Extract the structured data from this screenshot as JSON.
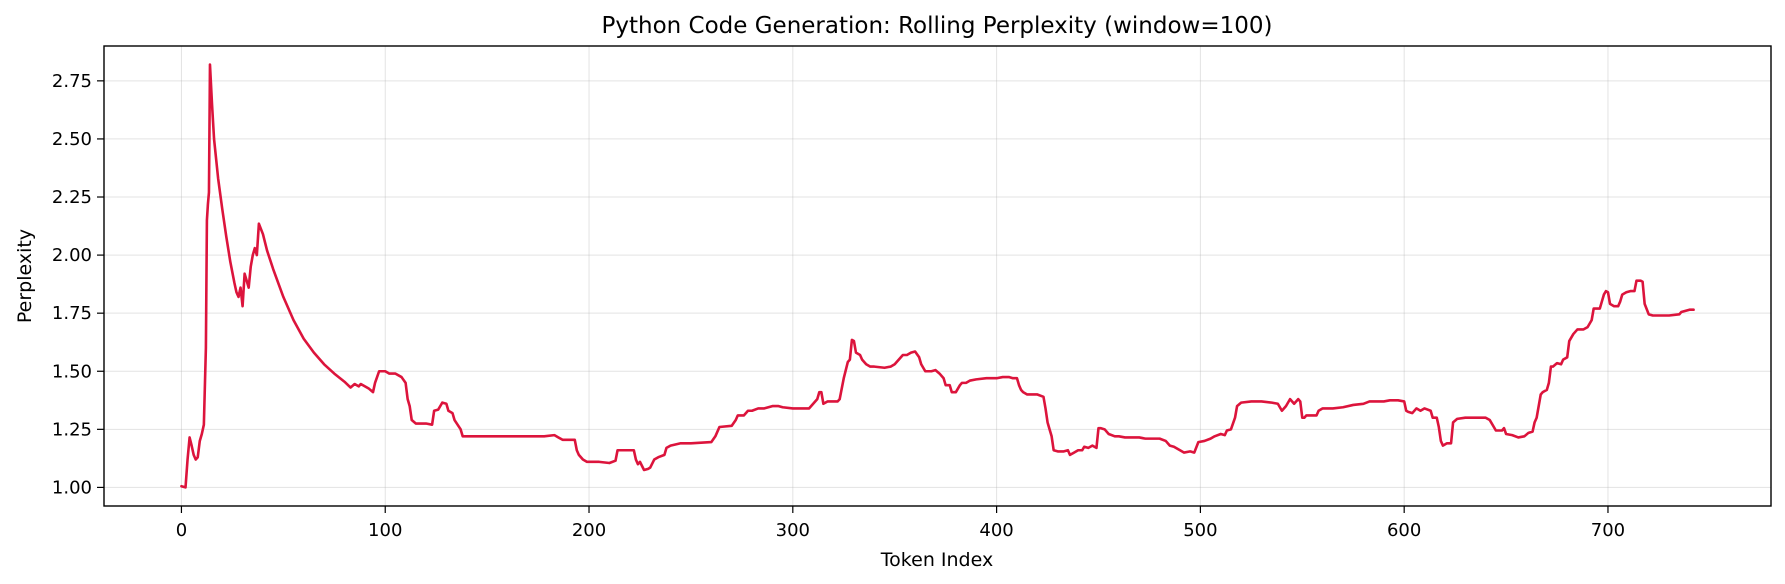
{
  "chart_data": {
    "type": "line",
    "title": "Python Code Generation: Rolling Perplexity (window=100)",
    "xlabel": "Token Index",
    "ylabel": "Perplexity",
    "xlim": [
      -38,
      780
    ],
    "ylim": [
      0.92,
      2.9
    ],
    "xticks": [
      0,
      100,
      200,
      300,
      400,
      500,
      600,
      700
    ],
    "yticks": [
      1.0,
      1.25,
      1.5,
      1.75,
      2.0,
      2.25,
      2.5,
      2.75
    ],
    "ytick_labels": [
      "1.00",
      "1.25",
      "1.50",
      "1.75",
      "2.00",
      "2.25",
      "2.50",
      "2.75"
    ],
    "xtick_labels": [
      "0",
      "100",
      "200",
      "300",
      "400",
      "500",
      "600",
      "700"
    ],
    "grid": true,
    "series": [
      {
        "color": "#dc143c",
        "points": [
          [
            0,
            1.005
          ],
          [
            2,
            1.0
          ],
          [
            3,
            1.12
          ],
          [
            4,
            1.215
          ],
          [
            5,
            1.18
          ],
          [
            6,
            1.14
          ],
          [
            7,
            1.12
          ],
          [
            8,
            1.13
          ],
          [
            9,
            1.2
          ],
          [
            10,
            1.23
          ],
          [
            11,
            1.27
          ],
          [
            12,
            1.6
          ],
          [
            12.5,
            2.15
          ],
          [
            13,
            2.22
          ],
          [
            13.5,
            2.27
          ],
          [
            14,
            2.82
          ],
          [
            15,
            2.65
          ],
          [
            16,
            2.5
          ],
          [
            18,
            2.33
          ],
          [
            20,
            2.2
          ],
          [
            22,
            2.08
          ],
          [
            24,
            1.97
          ],
          [
            26,
            1.88
          ],
          [
            27,
            1.84
          ],
          [
            28,
            1.82
          ],
          [
            29,
            1.86
          ],
          [
            30,
            1.78
          ],
          [
            31,
            1.92
          ],
          [
            32,
            1.89
          ],
          [
            33,
            1.86
          ],
          [
            34,
            1.95
          ],
          [
            35,
            2.0
          ],
          [
            36,
            2.03
          ],
          [
            37,
            2.0
          ],
          [
            38,
            2.135
          ],
          [
            40,
            2.09
          ],
          [
            42,
            2.02
          ],
          [
            45,
            1.94
          ],
          [
            50,
            1.82
          ],
          [
            55,
            1.72
          ],
          [
            60,
            1.64
          ],
          [
            65,
            1.58
          ],
          [
            70,
            1.53
          ],
          [
            75,
            1.49
          ],
          [
            80,
            1.455
          ],
          [
            83,
            1.43
          ],
          [
            85,
            1.445
          ],
          [
            87,
            1.435
          ],
          [
            88,
            1.445
          ],
          [
            92,
            1.425
          ],
          [
            94,
            1.41
          ],
          [
            95,
            1.45
          ],
          [
            97,
            1.5
          ],
          [
            100,
            1.5
          ],
          [
            102,
            1.49
          ],
          [
            105,
            1.49
          ],
          [
            108,
            1.475
          ],
          [
            110,
            1.45
          ],
          [
            111,
            1.38
          ],
          [
            112,
            1.35
          ],
          [
            113,
            1.29
          ],
          [
            115,
            1.275
          ],
          [
            120,
            1.275
          ],
          [
            123,
            1.27
          ],
          [
            124,
            1.33
          ],
          [
            126,
            1.335
          ],
          [
            127,
            1.35
          ],
          [
            128,
            1.365
          ],
          [
            130,
            1.36
          ],
          [
            131,
            1.33
          ],
          [
            133,
            1.32
          ],
          [
            134,
            1.29
          ],
          [
            137,
            1.25
          ],
          [
            138,
            1.22
          ],
          [
            140,
            1.22
          ],
          [
            150,
            1.22
          ],
          [
            160,
            1.22
          ],
          [
            170,
            1.22
          ],
          [
            175,
            1.22
          ],
          [
            178,
            1.22
          ],
          [
            183,
            1.225
          ],
          [
            185,
            1.215
          ],
          [
            187,
            1.205
          ],
          [
            193,
            1.205
          ],
          [
            194,
            1.16
          ],
          [
            195,
            1.14
          ],
          [
            197,
            1.12
          ],
          [
            199,
            1.11
          ],
          [
            205,
            1.11
          ],
          [
            210,
            1.105
          ],
          [
            213,
            1.115
          ],
          [
            214,
            1.16
          ],
          [
            222,
            1.16
          ],
          [
            223,
            1.12
          ],
          [
            224,
            1.1
          ],
          [
            225,
            1.11
          ],
          [
            227,
            1.075
          ],
          [
            229,
            1.08
          ],
          [
            230,
            1.085
          ],
          [
            232,
            1.12
          ],
          [
            234,
            1.13
          ],
          [
            237,
            1.14
          ],
          [
            238,
            1.17
          ],
          [
            240,
            1.18
          ],
          [
            245,
            1.19
          ],
          [
            250,
            1.19
          ],
          [
            260,
            1.195
          ],
          [
            262,
            1.22
          ],
          [
            264,
            1.26
          ],
          [
            270,
            1.265
          ],
          [
            272,
            1.29
          ],
          [
            273,
            1.31
          ],
          [
            276,
            1.31
          ],
          [
            278,
            1.33
          ],
          [
            280,
            1.33
          ],
          [
            283,
            1.34
          ],
          [
            286,
            1.34
          ],
          [
            290,
            1.35
          ],
          [
            293,
            1.35
          ],
          [
            295,
            1.345
          ],
          [
            300,
            1.34
          ],
          [
            305,
            1.34
          ],
          [
            308,
            1.34
          ],
          [
            310,
            1.36
          ],
          [
            312,
            1.38
          ],
          [
            313,
            1.41
          ],
          [
            314,
            1.41
          ],
          [
            315,
            1.36
          ],
          [
            317,
            1.37
          ],
          [
            320,
            1.37
          ],
          [
            322,
            1.37
          ],
          [
            323,
            1.38
          ],
          [
            325,
            1.47
          ],
          [
            327,
            1.54
          ],
          [
            328,
            1.55
          ],
          [
            329,
            1.635
          ],
          [
            330,
            1.63
          ],
          [
            331,
            1.58
          ],
          [
            333,
            1.57
          ],
          [
            334,
            1.55
          ],
          [
            336,
            1.53
          ],
          [
            338,
            1.52
          ],
          [
            340,
            1.52
          ],
          [
            345,
            1.515
          ],
          [
            348,
            1.52
          ],
          [
            350,
            1.53
          ],
          [
            352,
            1.55
          ],
          [
            354,
            1.57
          ],
          [
            356,
            1.57
          ],
          [
            358,
            1.58
          ],
          [
            360,
            1.585
          ],
          [
            362,
            1.56
          ],
          [
            363,
            1.53
          ],
          [
            365,
            1.5
          ],
          [
            368,
            1.5
          ],
          [
            370,
            1.505
          ],
          [
            372,
            1.49
          ],
          [
            374,
            1.47
          ],
          [
            375,
            1.44
          ],
          [
            377,
            1.44
          ],
          [
            378,
            1.41
          ],
          [
            380,
            1.41
          ],
          [
            382,
            1.44
          ],
          [
            383,
            1.45
          ],
          [
            385,
            1.45
          ],
          [
            387,
            1.46
          ],
          [
            390,
            1.465
          ],
          [
            395,
            1.47
          ],
          [
            400,
            1.47
          ],
          [
            403,
            1.475
          ],
          [
            406,
            1.475
          ],
          [
            408,
            1.47
          ],
          [
            410,
            1.47
          ],
          [
            411,
            1.44
          ],
          [
            412,
            1.42
          ],
          [
            413,
            1.41
          ],
          [
            415,
            1.4
          ],
          [
            420,
            1.4
          ],
          [
            423,
            1.39
          ],
          [
            424,
            1.34
          ],
          [
            425,
            1.28
          ],
          [
            426,
            1.25
          ],
          [
            427,
            1.22
          ],
          [
            428,
            1.16
          ],
          [
            430,
            1.155
          ],
          [
            433,
            1.155
          ],
          [
            435,
            1.16
          ],
          [
            436,
            1.14
          ],
          [
            438,
            1.15
          ],
          [
            440,
            1.16
          ],
          [
            442,
            1.16
          ],
          [
            443,
            1.175
          ],
          [
            445,
            1.17
          ],
          [
            447,
            1.18
          ],
          [
            449,
            1.17
          ],
          [
            450,
            1.255
          ],
          [
            451,
            1.255
          ],
          [
            453,
            1.25
          ],
          [
            455,
            1.23
          ],
          [
            458,
            1.22
          ],
          [
            460,
            1.22
          ],
          [
            463,
            1.215
          ],
          [
            470,
            1.215
          ],
          [
            473,
            1.21
          ],
          [
            480,
            1.21
          ],
          [
            483,
            1.2
          ],
          [
            485,
            1.18
          ],
          [
            487,
            1.175
          ],
          [
            490,
            1.16
          ],
          [
            492,
            1.15
          ],
          [
            495,
            1.155
          ],
          [
            497,
            1.15
          ],
          [
            499,
            1.195
          ],
          [
            502,
            1.2
          ],
          [
            505,
            1.21
          ],
          [
            507,
            1.22
          ],
          [
            510,
            1.23
          ],
          [
            512,
            1.225
          ],
          [
            513,
            1.245
          ],
          [
            515,
            1.25
          ],
          [
            517,
            1.3
          ],
          [
            518,
            1.35
          ],
          [
            520,
            1.365
          ],
          [
            525,
            1.37
          ],
          [
            530,
            1.37
          ],
          [
            535,
            1.365
          ],
          [
            538,
            1.36
          ],
          [
            540,
            1.33
          ],
          [
            542,
            1.35
          ],
          [
            544,
            1.38
          ],
          [
            546,
            1.36
          ],
          [
            548,
            1.38
          ],
          [
            549,
            1.37
          ],
          [
            550,
            1.3
          ],
          [
            551,
            1.3
          ],
          [
            552,
            1.31
          ],
          [
            555,
            1.31
          ],
          [
            557,
            1.31
          ],
          [
            558,
            1.33
          ],
          [
            560,
            1.34
          ],
          [
            565,
            1.34
          ],
          [
            570,
            1.345
          ],
          [
            575,
            1.355
          ],
          [
            580,
            1.36
          ],
          [
            583,
            1.37
          ],
          [
            590,
            1.37
          ],
          [
            593,
            1.375
          ],
          [
            597,
            1.375
          ],
          [
            600,
            1.37
          ],
          [
            601,
            1.33
          ],
          [
            602,
            1.325
          ],
          [
            604,
            1.32
          ],
          [
            606,
            1.34
          ],
          [
            608,
            1.33
          ],
          [
            610,
            1.34
          ],
          [
            613,
            1.33
          ],
          [
            614,
            1.3
          ],
          [
            616,
            1.3
          ],
          [
            617,
            1.26
          ],
          [
            618,
            1.2
          ],
          [
            619,
            1.18
          ],
          [
            621,
            1.19
          ],
          [
            623,
            1.19
          ],
          [
            624,
            1.28
          ],
          [
            626,
            1.295
          ],
          [
            630,
            1.3
          ],
          [
            640,
            1.3
          ],
          [
            642,
            1.29
          ],
          [
            644,
            1.26
          ],
          [
            645,
            1.245
          ],
          [
            648,
            1.245
          ],
          [
            649,
            1.255
          ],
          [
            650,
            1.23
          ],
          [
            653,
            1.225
          ],
          [
            656,
            1.215
          ],
          [
            659,
            1.22
          ],
          [
            661,
            1.235
          ],
          [
            663,
            1.24
          ],
          [
            664,
            1.28
          ],
          [
            665,
            1.3
          ],
          [
            667,
            1.4
          ],
          [
            668,
            1.41
          ],
          [
            670,
            1.42
          ],
          [
            671,
            1.45
          ],
          [
            672,
            1.52
          ],
          [
            673,
            1.52
          ],
          [
            675,
            1.535
          ],
          [
            677,
            1.53
          ],
          [
            678,
            1.55
          ],
          [
            680,
            1.56
          ],
          [
            681,
            1.63
          ],
          [
            683,
            1.66
          ],
          [
            685,
            1.68
          ],
          [
            688,
            1.68
          ],
          [
            690,
            1.69
          ],
          [
            692,
            1.72
          ],
          [
            693,
            1.77
          ],
          [
            696,
            1.77
          ],
          [
            697,
            1.8
          ],
          [
            698,
            1.83
          ],
          [
            699,
            1.845
          ],
          [
            700,
            1.84
          ],
          [
            701,
            1.79
          ],
          [
            703,
            1.78
          ],
          [
            705,
            1.78
          ],
          [
            706,
            1.8
          ],
          [
            707,
            1.83
          ],
          [
            709,
            1.84
          ],
          [
            711,
            1.845
          ],
          [
            713,
            1.845
          ],
          [
            714,
            1.89
          ],
          [
            716,
            1.89
          ],
          [
            717,
            1.885
          ],
          [
            718,
            1.79
          ],
          [
            720,
            1.745
          ],
          [
            722,
            1.74
          ],
          [
            730,
            1.74
          ],
          [
            735,
            1.745
          ],
          [
            736,
            1.755
          ],
          [
            740,
            1.765
          ],
          [
            742,
            1.765
          ]
        ]
      }
    ]
  }
}
